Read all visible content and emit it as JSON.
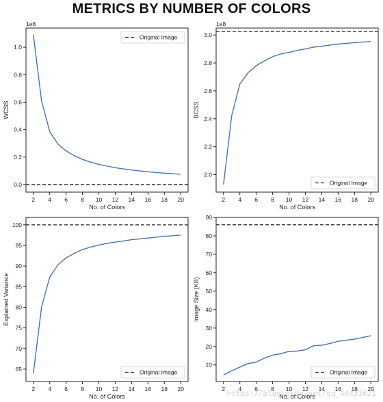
{
  "suptitle": "METRICS BY NUMBER OF COLORS",
  "watermark": "https://blog.csdn.net/qq_44431621",
  "colors": {
    "line": "#4c72b0",
    "reference": "#222222",
    "axes": "#222222"
  },
  "chart_data": [
    {
      "id": "wcss",
      "type": "line",
      "xlabel": "No. of Colors",
      "ylabel": "WCSS",
      "offset_text": "1e8",
      "xlim": [
        1.1,
        20.9
      ],
      "ylim": [
        -0.055,
        1.14
      ],
      "xticks": [
        2,
        4,
        6,
        8,
        10,
        12,
        14,
        16,
        18,
        20
      ],
      "yticks": [
        0.0,
        0.2,
        0.4,
        0.6,
        0.8,
        1.0
      ],
      "ytick_labels": [
        "0.0",
        "0.2",
        "0.4",
        "0.6",
        "0.8",
        "1.0"
      ],
      "x": [
        2,
        3,
        4,
        5,
        6,
        7,
        8,
        9,
        10,
        11,
        12,
        13,
        14,
        15,
        16,
        17,
        18,
        19,
        20
      ],
      "series": [
        {
          "values": [
            1.09,
            0.61,
            0.385,
            0.295,
            0.245,
            0.21,
            0.183,
            0.163,
            0.147,
            0.134,
            0.123,
            0.114,
            0.106,
            0.099,
            0.093,
            0.088,
            0.083,
            0.079,
            0.075
          ]
        }
      ],
      "reference_line": {
        "label": "Original Image",
        "value": 0.0
      },
      "legend_position": "upper right"
    },
    {
      "id": "bcss",
      "type": "line",
      "xlabel": "No. of Colors",
      "ylabel": "BCSS",
      "offset_text": "1e8",
      "xlim": [
        1.1,
        20.9
      ],
      "ylim": [
        1.875,
        3.05
      ],
      "xticks": [
        2,
        4,
        6,
        8,
        10,
        12,
        14,
        16,
        18,
        20
      ],
      "yticks": [
        2.0,
        2.2,
        2.4,
        2.6,
        2.8,
        3.0
      ],
      "ytick_labels": [
        "2.0",
        "2.2",
        "2.4",
        "2.6",
        "2.8",
        "3.0"
      ],
      "x": [
        2,
        3,
        4,
        5,
        6,
        7,
        8,
        9,
        10,
        11,
        12,
        13,
        14,
        15,
        16,
        17,
        18,
        19,
        20
      ],
      "series": [
        {
          "values": [
            1.93,
            2.42,
            2.65,
            2.73,
            2.78,
            2.815,
            2.845,
            2.865,
            2.875,
            2.89,
            2.9,
            2.913,
            2.92,
            2.928,
            2.935,
            2.94,
            2.945,
            2.95,
            2.953
          ]
        }
      ],
      "reference_line": {
        "label": "Original Image",
        "value": 3.025
      },
      "legend_position": "lower right"
    },
    {
      "id": "explained-variance",
      "type": "line",
      "xlabel": "No. of Colors",
      "ylabel": "Explained Variance",
      "xlim": [
        1.1,
        20.9
      ],
      "ylim": [
        62,
        101.8
      ],
      "xticks": [
        2,
        4,
        6,
        8,
        10,
        12,
        14,
        16,
        18,
        20
      ],
      "yticks": [
        65,
        70,
        75,
        80,
        85,
        90,
        95,
        100
      ],
      "ytick_labels": [
        "65",
        "70",
        "75",
        "80",
        "85",
        "90",
        "95",
        "100"
      ],
      "x": [
        2,
        3,
        4,
        5,
        6,
        7,
        8,
        9,
        10,
        11,
        12,
        13,
        14,
        15,
        16,
        17,
        18,
        19,
        20
      ],
      "series": [
        {
          "values": [
            64.0,
            80.0,
            87.3,
            90.3,
            92.0,
            93.1,
            94.0,
            94.6,
            95.1,
            95.5,
            95.8,
            96.1,
            96.4,
            96.6,
            96.8,
            97.0,
            97.2,
            97.35,
            97.5
          ]
        }
      ],
      "reference_line": {
        "label": "Original Image",
        "value": 100
      },
      "legend_position": "lower right"
    },
    {
      "id": "image-size",
      "type": "line",
      "xlabel": "No. of Colors",
      "ylabel": "Image Size (KB)",
      "xlim": [
        1.1,
        20.9
      ],
      "ylim": [
        1,
        90
      ],
      "xticks": [
        2,
        4,
        6,
        8,
        10,
        12,
        14,
        16,
        18,
        20
      ],
      "yticks": [
        10,
        20,
        30,
        40,
        50,
        60,
        70,
        80,
        90
      ],
      "ytick_labels": [
        "10",
        "20",
        "30",
        "40",
        "50",
        "60",
        "70",
        "80",
        "90"
      ],
      "x": [
        2,
        3,
        4,
        5,
        6,
        7,
        8,
        9,
        10,
        11,
        12,
        13,
        14,
        15,
        16,
        17,
        18,
        19,
        20
      ],
      "series": [
        {
          "values": [
            4.5,
            6.8,
            8.8,
            10.7,
            11.5,
            13.7,
            15.3,
            16.1,
            17.3,
            17.5,
            18.2,
            20.4,
            20.6,
            21.6,
            22.8,
            23.4,
            24.0,
            24.9,
            25.8
          ]
        }
      ],
      "reference_line": {
        "label": "Original Image",
        "value": 86
      },
      "legend_position": "lower right"
    }
  ]
}
